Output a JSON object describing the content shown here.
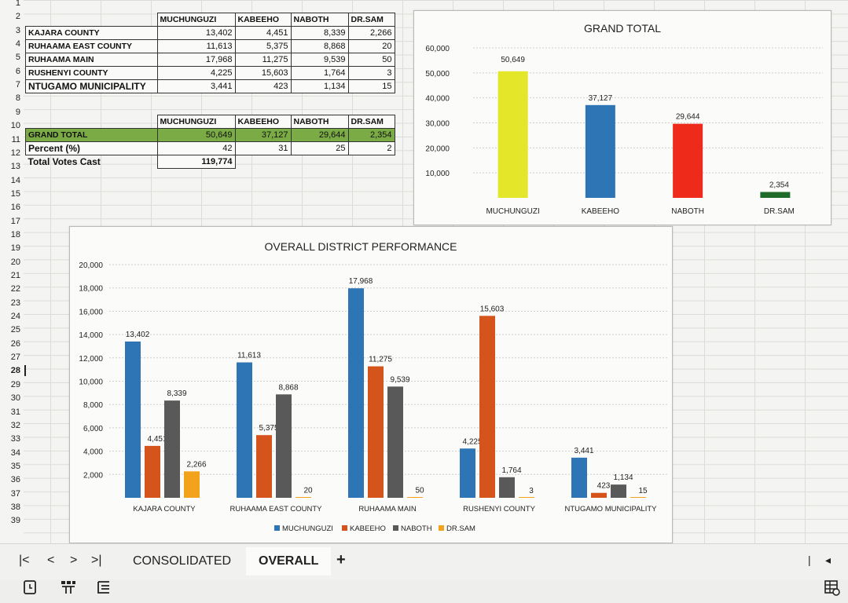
{
  "rows": [
    "1",
    "2",
    "3",
    "4",
    "5",
    "6",
    "7",
    "8",
    "9",
    "10",
    "11",
    "12",
    "13",
    "14",
    "15",
    "16",
    "17",
    "18",
    "19",
    "20",
    "21",
    "22",
    "23",
    "24",
    "25",
    "26",
    "27",
    "28",
    "29",
    "30",
    "31",
    "32",
    "33",
    "34",
    "35",
    "36",
    "37",
    "38",
    "39"
  ],
  "active_row": "28",
  "district_table": {
    "headers": [
      "MUCHUNGUZI",
      "KABEEHO",
      "NABOTH",
      "DR.SAM"
    ],
    "rows": [
      {
        "name": "KAJARA COUNTY",
        "values": [
          "13,402",
          "4,451",
          "8,339",
          "2,266"
        ]
      },
      {
        "name": "RUHAAMA EAST COUNTY",
        "values": [
          "11,613",
          "5,375",
          "8,868",
          "20"
        ]
      },
      {
        "name": "RUHAAMA MAIN",
        "values": [
          "17,968",
          "11,275",
          "9,539",
          "50"
        ]
      },
      {
        "name": "RUSHENYI COUNTY",
        "values": [
          "4,225",
          "15,603",
          "1,764",
          "3"
        ]
      },
      {
        "name": "NTUGAMO MUNICIPALITY",
        "values": [
          "3,441",
          "423",
          "1,134",
          "15"
        ]
      }
    ]
  },
  "summary_table": {
    "headers": [
      "MUCHUNGUZI",
      "KABEEHO",
      "NABOTH",
      "DR.SAM"
    ],
    "grand_total_label": "GRAND TOTAL",
    "grand_total": [
      "50,649",
      "37,127",
      "29,644",
      "2,354"
    ],
    "percent_label": "Percent (%)",
    "percent": [
      "42",
      "31",
      "25",
      "2"
    ],
    "total_votes_label": "Total Votes Cast",
    "total_votes": "119,774"
  },
  "colors": {
    "muchunguzi": "#2e75b6",
    "kabeeho": "#d5541c",
    "naboth": "#595959",
    "drsam": "#f2a21b",
    "grand_muchunguzi": "#e4e62a",
    "grand_kabeeho": "#2e75b6",
    "grand_naboth": "#ee2a1b",
    "grand_drsam": "#1f6b2a",
    "green_row": "#7bab45"
  },
  "chart_data": [
    {
      "type": "bar",
      "title": "GRAND TOTAL",
      "categories": [
        "MUCHUNGUZI",
        "KABEEHO",
        "NABOTH",
        "DR.SAM"
      ],
      "values": [
        50649,
        37127,
        29644,
        2354
      ],
      "value_labels": [
        "50,649",
        "37,127",
        "29,644",
        "2,354"
      ],
      "ylim": [
        0,
        60000
      ],
      "yticks": [
        10000,
        20000,
        30000,
        40000,
        50000,
        60000
      ],
      "ytick_labels": [
        "10,000",
        "20,000",
        "30,000",
        "40,000",
        "50,000",
        "60,000"
      ],
      "grid": true,
      "legend": "none"
    },
    {
      "type": "bar",
      "title": "OVERALL DISTRICT PERFORMANCE",
      "categories": [
        "KAJARA COUNTY",
        "RUHAAMA EAST COUNTY",
        "RUHAAMA MAIN",
        "RUSHENYI COUNTY",
        "NTUGAMO MUNICIPALITY"
      ],
      "series": [
        {
          "name": "MUCHUNGUZI",
          "values": [
            13402,
            11613,
            17968,
            4225,
            3441
          ],
          "labels": [
            "13,402",
            "11,613",
            "17,968",
            "4,225",
            "3,441"
          ]
        },
        {
          "name": "KABEEHO",
          "values": [
            4451,
            5375,
            11275,
            15603,
            423
          ],
          "labels": [
            "4,451",
            "5,375",
            "11,275",
            "15,603",
            "423"
          ]
        },
        {
          "name": "NABOTH",
          "values": [
            8339,
            8868,
            9539,
            1764,
            1134
          ],
          "labels": [
            "8,339",
            "8,868",
            "9,539",
            "1,764",
            "1,134"
          ]
        },
        {
          "name": "DR.SAM",
          "values": [
            2266,
            20,
            50,
            3,
            15
          ],
          "labels": [
            "2,266",
            "20",
            "50",
            "3",
            "15"
          ]
        }
      ],
      "ylim": [
        0,
        20000
      ],
      "yticks": [
        2000,
        4000,
        6000,
        8000,
        10000,
        12000,
        14000,
        16000,
        18000,
        20000
      ],
      "ytick_labels": [
        "2,000",
        "4,000",
        "6,000",
        "8,000",
        "10,000",
        "12,000",
        "14,000",
        "16,000",
        "18,000",
        "20,000"
      ],
      "grid": true,
      "legend": "bottom"
    }
  ],
  "tabs": {
    "nav": [
      "|<",
      "<",
      ">",
      ">|"
    ],
    "sheets": [
      "CONSOLIDATED",
      "OVERALL"
    ],
    "active": "OVERALL",
    "add": "+"
  },
  "icons": [
    "sheet-icon",
    "format-icon",
    "list-icon",
    "sheet-view-icon"
  ],
  "right_controls": [
    "|",
    "◂"
  ]
}
